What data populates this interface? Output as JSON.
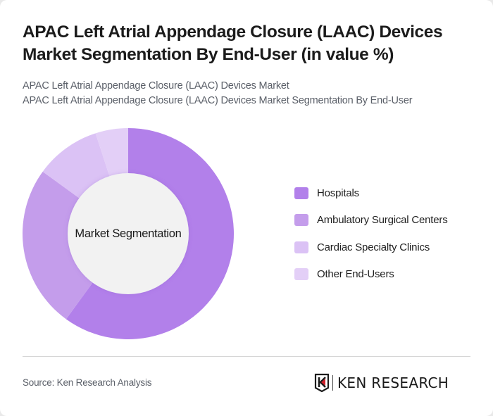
{
  "header": {
    "title": "APAC Left Atrial Appendage Closure (LAAC) Devices Market Segmentation By End-User (in value %)",
    "subtitle_line1": "APAC Left Atrial Appendage Closure (LAAC) Devices Market",
    "subtitle_line2": "APAC Left Atrial Appendage Closure (LAAC) Devices Market Segmentation By End-User"
  },
  "chart": {
    "center_label": "Market Segmentation"
  },
  "legend": {
    "items": [
      {
        "label": "Hospitals",
        "color": "#b280ea"
      },
      {
        "label": "Ambulatory Surgical Centers",
        "color": "#c49deb"
      },
      {
        "label": "Cardiac Specialty Clinics",
        "color": "#dbc2f5"
      },
      {
        "label": "Other End-Users",
        "color": "#e3cff7"
      }
    ]
  },
  "footer": {
    "source": "Source: Ken Research Analysis",
    "logo_text": "KEN RESEARCH",
    "logo_icon": "ken-research-k-shield-icon"
  },
  "chart_data": {
    "type": "pie",
    "variant": "donut",
    "title": "APAC Left Atrial Appendage Closure (LAAC) Devices Market Segmentation By End-User (in value %)",
    "center_label": "Market Segmentation",
    "categories": [
      "Hospitals",
      "Ambulatory Surgical Centers",
      "Cardiac Specialty Clinics",
      "Other End-Users"
    ],
    "values": [
      60,
      25,
      10,
      5
    ],
    "colors": [
      "#b280ea",
      "#c49deb",
      "#dbc2f5",
      "#e3cff7"
    ],
    "unit": "%",
    "legend_position": "right",
    "start_angle": "top, clockwise"
  }
}
